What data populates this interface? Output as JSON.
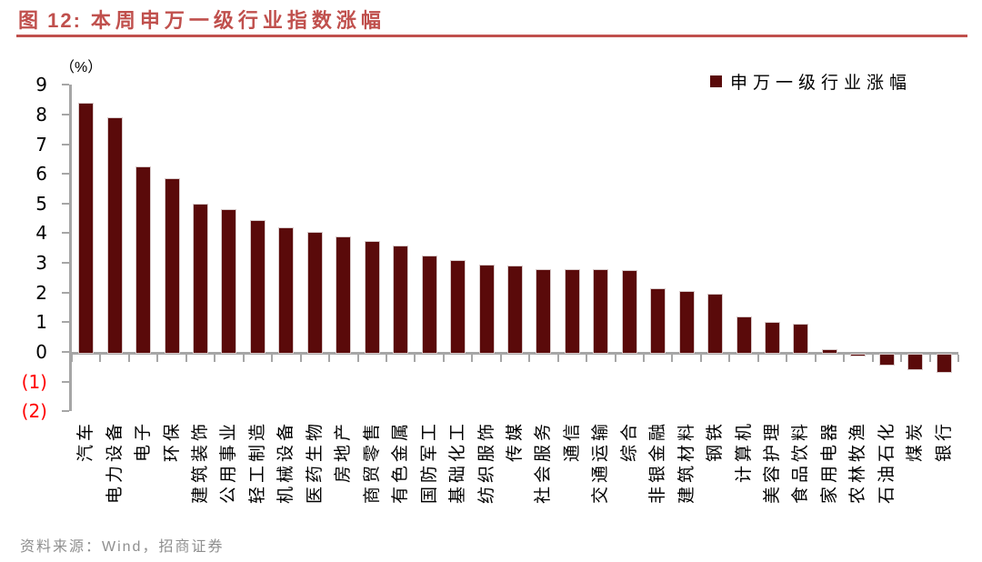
{
  "header": {
    "figure_label": "图 12:",
    "title": "本周申万一级行业指数涨幅",
    "accent_color": "#C0504D"
  },
  "footer": {
    "source": "资料来源：Wind，招商证券"
  },
  "chart_data": {
    "type": "bar",
    "title": "本周申万一级行业指数涨幅",
    "unit_label": "（%）",
    "xlabel": "",
    "ylabel": "（%）",
    "ylim": [
      -2,
      9
    ],
    "ytick_step": 1,
    "ytick_labels": [
      "9",
      "8",
      "7",
      "6",
      "5",
      "4",
      "3",
      "2",
      "1",
      "0",
      "(1)",
      "(2)"
    ],
    "grid": false,
    "legend": [
      "申万一级行业涨幅"
    ],
    "legend_position": "top-right",
    "bar_color": "#5A0A0A",
    "negative_tick_color": "#FF0000",
    "axis_color": "#A6A6A6",
    "categories": [
      "汽车",
      "电力设备",
      "电子",
      "环保",
      "建筑装饰",
      "公用事业",
      "轻工制造",
      "机械设备",
      "医药生物",
      "房地产",
      "商贸零售",
      "有色金属",
      "国防军工",
      "基础化工",
      "纺织服饰",
      "传媒",
      "社会服务",
      "通信",
      "交通运输",
      "综合",
      "非银金融",
      "建筑材料",
      "钢铁",
      "计算机",
      "美容护理",
      "食品饮料",
      "家用电器",
      "农林牧渔",
      "石油石化",
      "煤炭",
      "银行"
    ],
    "values": [
      8.4,
      7.9,
      6.25,
      5.85,
      5.0,
      4.8,
      4.45,
      4.2,
      4.05,
      3.9,
      3.75,
      3.6,
      3.25,
      3.1,
      2.95,
      2.9,
      2.8,
      2.8,
      2.8,
      2.75,
      2.15,
      2.05,
      1.95,
      1.2,
      1.0,
      0.95,
      0.1,
      -0.15,
      -0.45,
      -0.6,
      -0.7
    ]
  }
}
